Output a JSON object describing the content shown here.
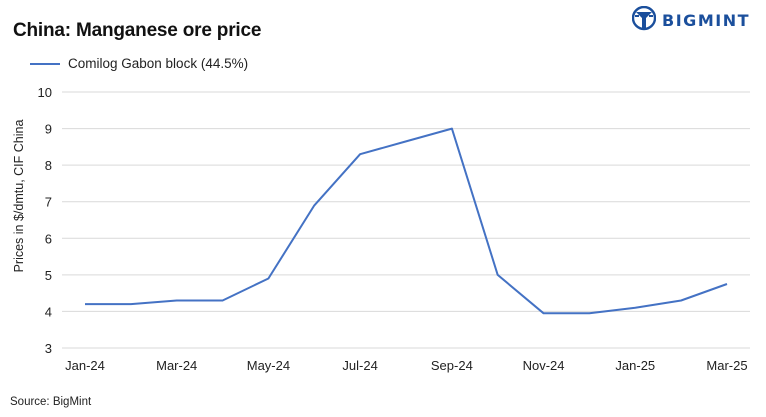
{
  "header": {
    "title": "China: Manganese ore price",
    "brand": "BIGMINT"
  },
  "footer": {
    "source": "Source:  BigMint"
  },
  "chart_data": {
    "type": "line",
    "title": "China: Manganese ore price",
    "ylabel": "Prices in $/dmtu, CIF China",
    "xlabel": "",
    "ylim": [
      3,
      10
    ],
    "yticks": [
      3,
      4,
      5,
      6,
      7,
      8,
      9,
      10
    ],
    "grid": true,
    "legend_position": "top-left",
    "x": [
      "Jan-24",
      "Feb-24",
      "Mar-24",
      "Apr-24",
      "May-24",
      "Jun-24",
      "Jul-24",
      "Aug-24",
      "Sep-24",
      "Oct-24",
      "Nov-24",
      "Dec-24",
      "Jan-25",
      "Feb-25",
      "Mar-25"
    ],
    "x_tick_labels": [
      "Jan-24",
      "Mar-24",
      "May-24",
      "Jul-24",
      "Sep-24",
      "Nov-24",
      "Jan-25",
      "Mar-25"
    ],
    "series": [
      {
        "name": "Comilog Gabon block (44.5%)",
        "color": "#4472c4",
        "values": [
          4.2,
          4.2,
          4.3,
          4.3,
          4.9,
          6.9,
          8.3,
          8.65,
          9.0,
          5.0,
          3.95,
          3.95,
          4.1,
          4.3,
          4.75
        ]
      }
    ]
  },
  "colors": {
    "line": "#4472c4",
    "grid": "#d9d9d9",
    "brand": "#1b4f9c"
  }
}
